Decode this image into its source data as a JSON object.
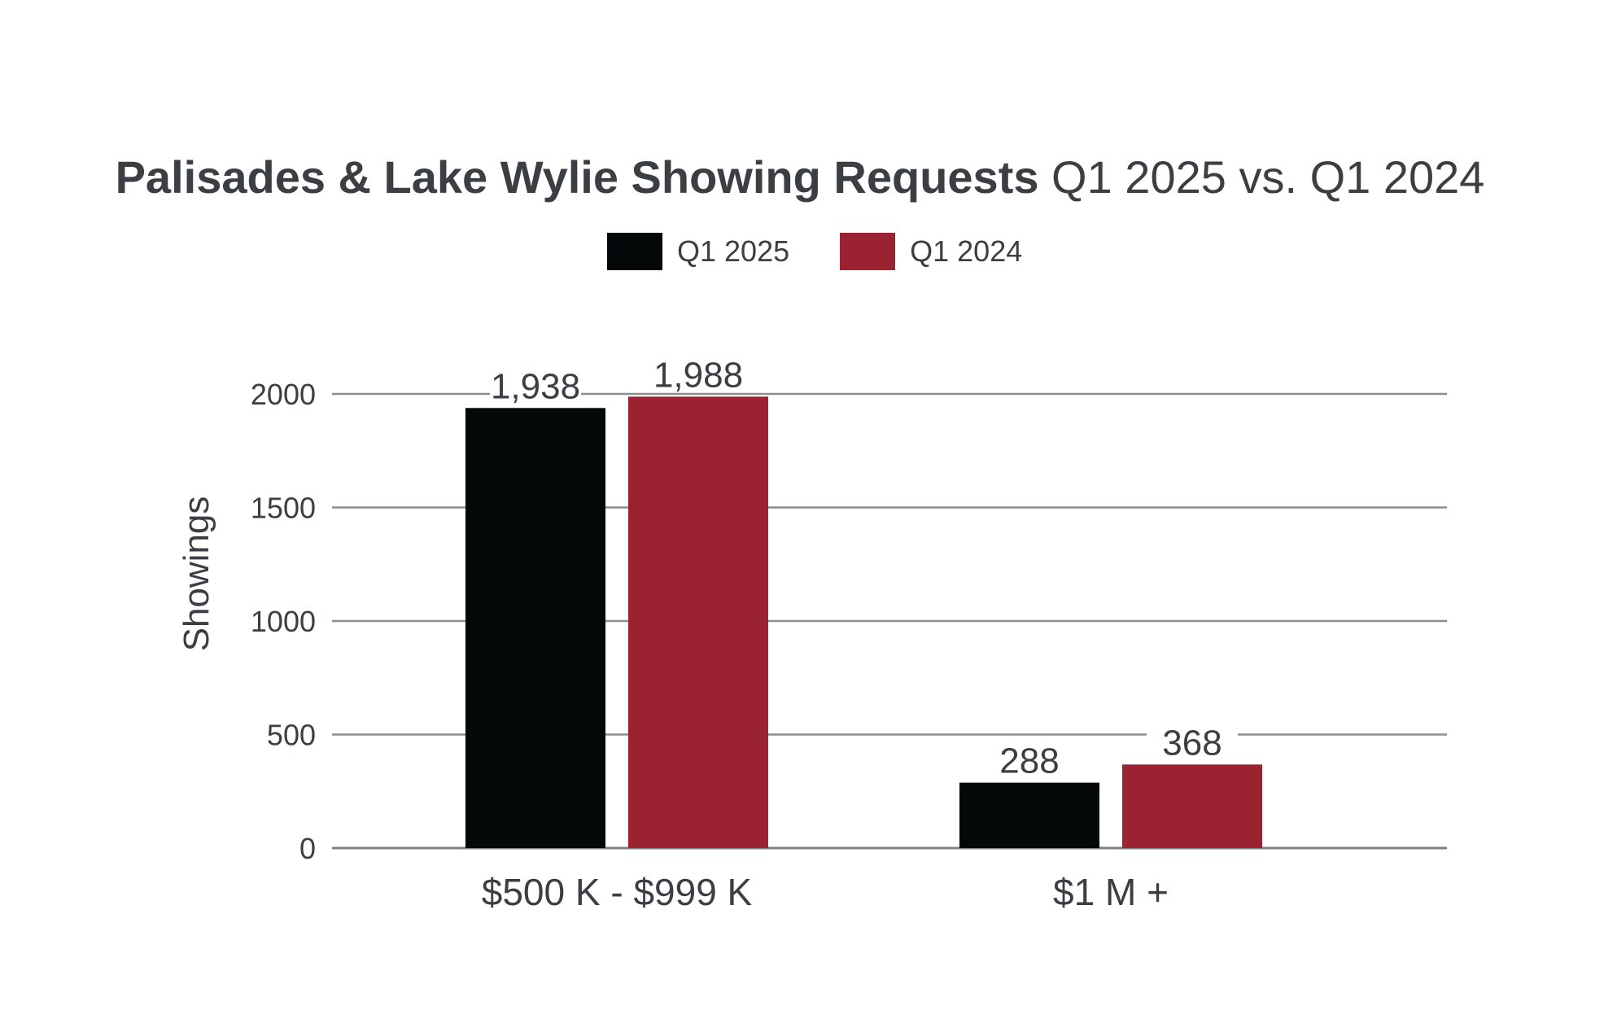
{
  "chart_data": {
    "type": "bar",
    "title": "Palisades & Lake Wylie Showing Requests",
    "subtitle": "Q1 2025 vs. Q1 2024",
    "xlabel": "",
    "ylabel": "Showings",
    "categories": [
      "$500 K - $999 K",
      "$1 M +"
    ],
    "series": [
      {
        "name": "Q1 2025",
        "color": "#050808",
        "values": [
          1938,
          288
        ],
        "labels": [
          "1,938",
          "288"
        ]
      },
      {
        "name": "Q1 2024",
        "color": "#9b2230",
        "values": [
          1988,
          368
        ],
        "labels": [
          "1,988",
          "368"
        ]
      }
    ],
    "ylim": [
      0,
      2000
    ],
    "yticks": [
      0,
      500,
      1000,
      1500,
      2000
    ],
    "grid": true,
    "legend": "top-center"
  }
}
